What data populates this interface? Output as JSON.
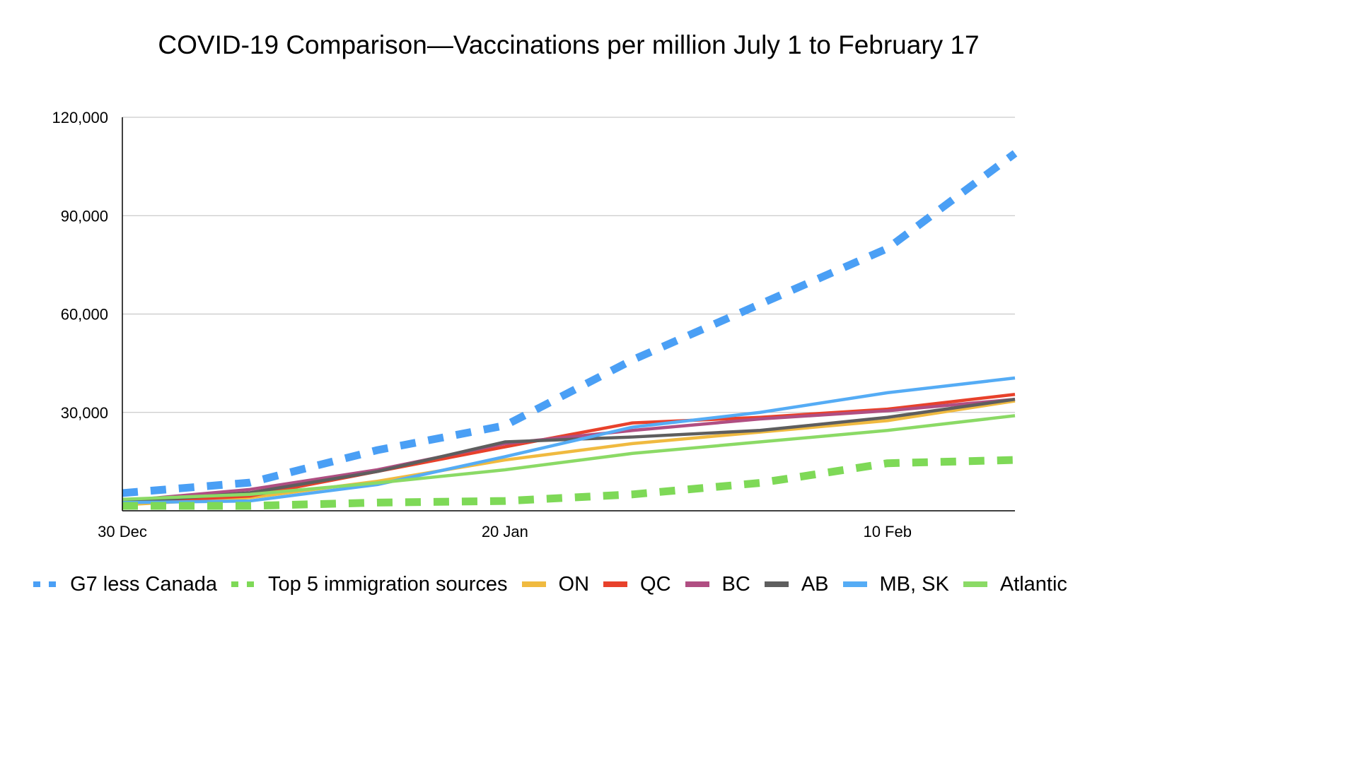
{
  "chart_data": {
    "type": "line",
    "title": "COVID-19 Comparison—Vaccinations per million July 1 to February 17",
    "xlabel": "",
    "ylabel": "",
    "x": [
      "30 Dec",
      "6 Jan",
      "13 Jan",
      "20 Jan",
      "27 Jan",
      "3 Feb",
      "10 Feb",
      "17 Feb"
    ],
    "x_tick_labels": [
      "30 Dec",
      "20 Jan",
      "10 Feb"
    ],
    "ylim": [
      0,
      120000
    ],
    "y_ticks": [
      30000,
      60000,
      90000,
      120000
    ],
    "y_tick_labels": [
      "30,000",
      "60,000",
      "90,000",
      "120,000"
    ],
    "grid": true,
    "legend_position": "bottom",
    "series": [
      {
        "name": "G7 less Canada",
        "style": "dashed",
        "color": "#4A9FF5",
        "values": [
          5400,
          8600,
          18500,
          26000,
          46000,
          63000,
          80000,
          109000
        ]
      },
      {
        "name": "Top 5 immigration sources",
        "style": "dashed",
        "color": "#7ED957",
        "values": [
          1500,
          1500,
          2500,
          3000,
          5000,
          8500,
          14500,
          15500
        ]
      },
      {
        "name": "ON",
        "style": "solid",
        "color": "#F0BA40",
        "values": [
          1800,
          4000,
          9000,
          15500,
          20500,
          24000,
          27500,
          33500
        ]
      },
      {
        "name": "QC",
        "style": "solid",
        "color": "#E8412B",
        "values": [
          2500,
          4500,
          12000,
          19500,
          26800,
          28500,
          31000,
          35500
        ]
      },
      {
        "name": "BC",
        "style": "solid",
        "color": "#B04E82",
        "values": [
          3000,
          6500,
          12500,
          20500,
          24500,
          28000,
          30500,
          34000
        ]
      },
      {
        "name": "AB",
        "style": "solid",
        "color": "#5E5E5E",
        "values": [
          2500,
          5500,
          12000,
          21000,
          22500,
          24500,
          28500,
          34000
        ]
      },
      {
        "name": "MB, SK",
        "style": "solid",
        "color": "#55ACF5",
        "values": [
          2500,
          3000,
          8000,
          16500,
          25500,
          30000,
          36000,
          40500
        ]
      },
      {
        "name": "Atlantic",
        "style": "solid",
        "color": "#8BDA66",
        "values": [
          3500,
          5000,
          8500,
          12500,
          17500,
          21000,
          24500,
          29000
        ]
      }
    ]
  }
}
